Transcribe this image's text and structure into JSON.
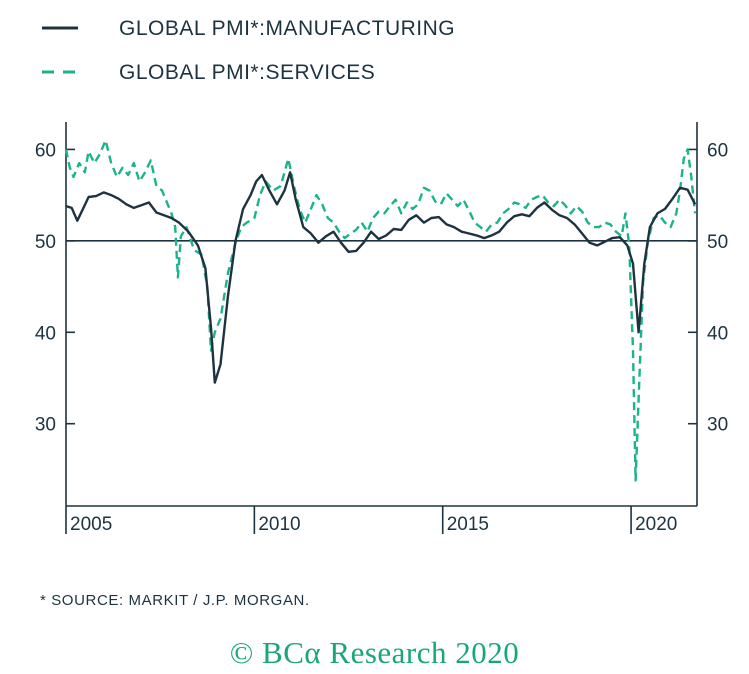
{
  "colors": {
    "manufacturing": "#1d3340",
    "services": "#1bb38a",
    "copyright": "#1aa57a"
  },
  "legend": [
    {
      "label": "GLOBAL PMI*:MANUFACTURING",
      "style": "solid"
    },
    {
      "label": "GLOBAL PMI*:SERVICES",
      "style": "dashed"
    }
  ],
  "footnote": "*  SOURCE: MARKIT / J.P. MORGAN.",
  "copyright": "© BCα Research 2020",
  "chart_data": {
    "type": "line",
    "xlim": [
      2004.0,
      2020.75
    ],
    "ylim": [
      21,
      63
    ],
    "y_ticks": [
      30,
      40,
      50,
      60
    ],
    "x_ticks": [
      {
        "value": 2004.0,
        "label": "2005"
      },
      {
        "value": 2009.0,
        "label": "2010"
      },
      {
        "value": 2014.0,
        "label": "2015"
      },
      {
        "value": 2019.0,
        "label": "2020"
      }
    ],
    "reference_line": 50,
    "dual_axis_labels": true,
    "grid": false,
    "legend_position": "top-left",
    "series": [
      {
        "name": "GLOBAL PMI*:MANUFACTURING",
        "style": "solid",
        "points": [
          [
            2004.0,
            53.8
          ],
          [
            2004.15,
            53.6
          ],
          [
            2004.3,
            52.2
          ],
          [
            2004.45,
            53.5
          ],
          [
            2004.6,
            54.8
          ],
          [
            2004.8,
            54.9
          ],
          [
            2005.0,
            55.3
          ],
          [
            2005.2,
            55.0
          ],
          [
            2005.4,
            54.6
          ],
          [
            2005.6,
            54.0
          ],
          [
            2005.8,
            53.6
          ],
          [
            2006.0,
            53.9
          ],
          [
            2006.2,
            54.2
          ],
          [
            2006.4,
            53.1
          ],
          [
            2006.6,
            52.8
          ],
          [
            2006.8,
            52.5
          ],
          [
            2007.0,
            52.0
          ],
          [
            2007.25,
            51.0
          ],
          [
            2007.5,
            49.5
          ],
          [
            2007.7,
            47.0
          ],
          [
            2007.85,
            40.5
          ],
          [
            2007.95,
            34.5
          ],
          [
            2008.1,
            36.5
          ],
          [
            2008.3,
            44.0
          ],
          [
            2008.5,
            50.0
          ],
          [
            2008.7,
            53.5
          ],
          [
            2008.9,
            55.0
          ],
          [
            2009.05,
            56.5
          ],
          [
            2009.2,
            57.2
          ],
          [
            2009.4,
            55.5
          ],
          [
            2009.6,
            54.0
          ],
          [
            2009.8,
            55.5
          ],
          [
            2009.95,
            57.5
          ],
          [
            2010.1,
            54.5
          ],
          [
            2010.3,
            51.5
          ],
          [
            2010.5,
            50.8
          ],
          [
            2010.7,
            49.8
          ],
          [
            2010.9,
            50.5
          ],
          [
            2011.1,
            51.0
          ],
          [
            2011.3,
            49.8
          ],
          [
            2011.5,
            48.8
          ],
          [
            2011.7,
            48.9
          ],
          [
            2011.9,
            49.8
          ],
          [
            2012.1,
            51.0
          ],
          [
            2012.3,
            50.2
          ],
          [
            2012.5,
            50.6
          ],
          [
            2012.7,
            51.3
          ],
          [
            2012.9,
            51.2
          ],
          [
            2013.1,
            52.3
          ],
          [
            2013.3,
            52.8
          ],
          [
            2013.5,
            52.0
          ],
          [
            2013.7,
            52.5
          ],
          [
            2013.9,
            52.6
          ],
          [
            2014.1,
            51.8
          ],
          [
            2014.3,
            51.5
          ],
          [
            2014.5,
            51.0
          ],
          [
            2014.7,
            50.8
          ],
          [
            2014.9,
            50.6
          ],
          [
            2015.1,
            50.3
          ],
          [
            2015.3,
            50.6
          ],
          [
            2015.5,
            51.0
          ],
          [
            2015.7,
            52.0
          ],
          [
            2015.9,
            52.7
          ],
          [
            2016.1,
            52.9
          ],
          [
            2016.3,
            52.7
          ],
          [
            2016.5,
            53.6
          ],
          [
            2016.7,
            54.2
          ],
          [
            2016.9,
            53.4
          ],
          [
            2017.1,
            52.8
          ],
          [
            2017.3,
            52.5
          ],
          [
            2017.5,
            51.8
          ],
          [
            2017.7,
            50.8
          ],
          [
            2017.9,
            49.8
          ],
          [
            2018.1,
            49.5
          ],
          [
            2018.3,
            49.9
          ],
          [
            2018.5,
            50.3
          ],
          [
            2018.7,
            50.4
          ],
          [
            2018.9,
            49.5
          ],
          [
            2019.05,
            47.5
          ],
          [
            2019.2,
            40.0
          ],
          [
            2019.35,
            47.5
          ],
          [
            2019.5,
            51.5
          ],
          [
            2019.7,
            53.0
          ],
          [
            2019.9,
            53.5
          ],
          [
            2020.1,
            54.6
          ],
          [
            2020.3,
            55.8
          ],
          [
            2020.5,
            55.6
          ],
          [
            2020.7,
            54.0
          ]
        ]
      },
      {
        "name": "GLOBAL PMI*:SERVICES",
        "style": "dashed",
        "points": [
          [
            2004.0,
            60.0
          ],
          [
            2004.1,
            58.0
          ],
          [
            2004.2,
            57.0
          ],
          [
            2004.35,
            58.5
          ],
          [
            2004.5,
            57.5
          ],
          [
            2004.6,
            59.8
          ],
          [
            2004.75,
            58.5
          ],
          [
            2004.9,
            59.5
          ],
          [
            2005.05,
            61.0
          ],
          [
            2005.2,
            58.5
          ],
          [
            2005.35,
            57.0
          ],
          [
            2005.5,
            58.0
          ],
          [
            2005.65,
            57.2
          ],
          [
            2005.8,
            58.5
          ],
          [
            2005.95,
            56.5
          ],
          [
            2006.1,
            57.5
          ],
          [
            2006.25,
            58.8
          ],
          [
            2006.4,
            56.0
          ],
          [
            2006.55,
            55.5
          ],
          [
            2006.7,
            54.0
          ],
          [
            2006.8,
            53.0
          ],
          [
            2006.9,
            51.5
          ],
          [
            2006.97,
            46.0
          ],
          [
            2007.05,
            50.5
          ],
          [
            2007.2,
            51.5
          ],
          [
            2007.4,
            49.0
          ],
          [
            2007.6,
            48.5
          ],
          [
            2007.75,
            45.0
          ],
          [
            2007.85,
            38.0
          ],
          [
            2007.95,
            40.0
          ],
          [
            2008.1,
            41.5
          ],
          [
            2008.3,
            46.5
          ],
          [
            2008.5,
            49.8
          ],
          [
            2008.65,
            51.5
          ],
          [
            2008.8,
            52.0
          ],
          [
            2009.0,
            52.5
          ],
          [
            2009.15,
            55.0
          ],
          [
            2009.3,
            56.5
          ],
          [
            2009.5,
            55.5
          ],
          [
            2009.7,
            56.0
          ],
          [
            2009.9,
            59.0
          ],
          [
            2010.05,
            56.0
          ],
          [
            2010.2,
            53.5
          ],
          [
            2010.35,
            52.0
          ],
          [
            2010.5,
            53.5
          ],
          [
            2010.65,
            55.0
          ],
          [
            2010.8,
            54.0
          ],
          [
            2010.95,
            52.5
          ],
          [
            2011.1,
            52.0
          ],
          [
            2011.25,
            51.0
          ],
          [
            2011.4,
            50.3
          ],
          [
            2011.55,
            50.8
          ],
          [
            2011.7,
            51.2
          ],
          [
            2011.85,
            52.0
          ],
          [
            2012.0,
            51.0
          ],
          [
            2012.15,
            52.5
          ],
          [
            2012.3,
            53.2
          ],
          [
            2012.45,
            53.0
          ],
          [
            2012.6,
            53.8
          ],
          [
            2012.75,
            54.5
          ],
          [
            2012.9,
            53.0
          ],
          [
            2013.05,
            54.2
          ],
          [
            2013.2,
            53.5
          ],
          [
            2013.35,
            54.0
          ],
          [
            2013.5,
            55.8
          ],
          [
            2013.65,
            55.5
          ],
          [
            2013.8,
            54.3
          ],
          [
            2013.95,
            54.0
          ],
          [
            2014.1,
            55.2
          ],
          [
            2014.25,
            54.5
          ],
          [
            2014.4,
            53.8
          ],
          [
            2014.55,
            54.5
          ],
          [
            2014.7,
            53.3
          ],
          [
            2014.85,
            52.0
          ],
          [
            2015.0,
            51.5
          ],
          [
            2015.15,
            51.0
          ],
          [
            2015.3,
            51.8
          ],
          [
            2015.45,
            52.0
          ],
          [
            2015.6,
            53.0
          ],
          [
            2015.75,
            53.5
          ],
          [
            2015.9,
            54.2
          ],
          [
            2016.05,
            54.0
          ],
          [
            2016.2,
            53.6
          ],
          [
            2016.35,
            54.5
          ],
          [
            2016.5,
            54.8
          ],
          [
            2016.65,
            55.0
          ],
          [
            2016.8,
            54.2
          ],
          [
            2016.95,
            53.8
          ],
          [
            2017.1,
            54.5
          ],
          [
            2017.25,
            53.9
          ],
          [
            2017.4,
            53.0
          ],
          [
            2017.55,
            53.8
          ],
          [
            2017.7,
            53.2
          ],
          [
            2017.85,
            52.0
          ],
          [
            2018.0,
            51.5
          ],
          [
            2018.15,
            51.5
          ],
          [
            2018.3,
            52.0
          ],
          [
            2018.45,
            51.8
          ],
          [
            2018.6,
            51.0
          ],
          [
            2018.75,
            50.5
          ],
          [
            2018.85,
            53.0
          ],
          [
            2018.95,
            49.5
          ],
          [
            2019.05,
            38.0
          ],
          [
            2019.12,
            23.8
          ],
          [
            2019.22,
            35.0
          ],
          [
            2019.32,
            45.5
          ],
          [
            2019.45,
            50.0
          ],
          [
            2019.6,
            52.5
          ],
          [
            2019.75,
            52.8
          ],
          [
            2019.9,
            52.0
          ],
          [
            2020.05,
            51.5
          ],
          [
            2020.2,
            53.0
          ],
          [
            2020.3,
            55.5
          ],
          [
            2020.4,
            59.0
          ],
          [
            2020.5,
            60.0
          ],
          [
            2020.6,
            57.0
          ],
          [
            2020.7,
            53.0
          ]
        ]
      }
    ]
  }
}
